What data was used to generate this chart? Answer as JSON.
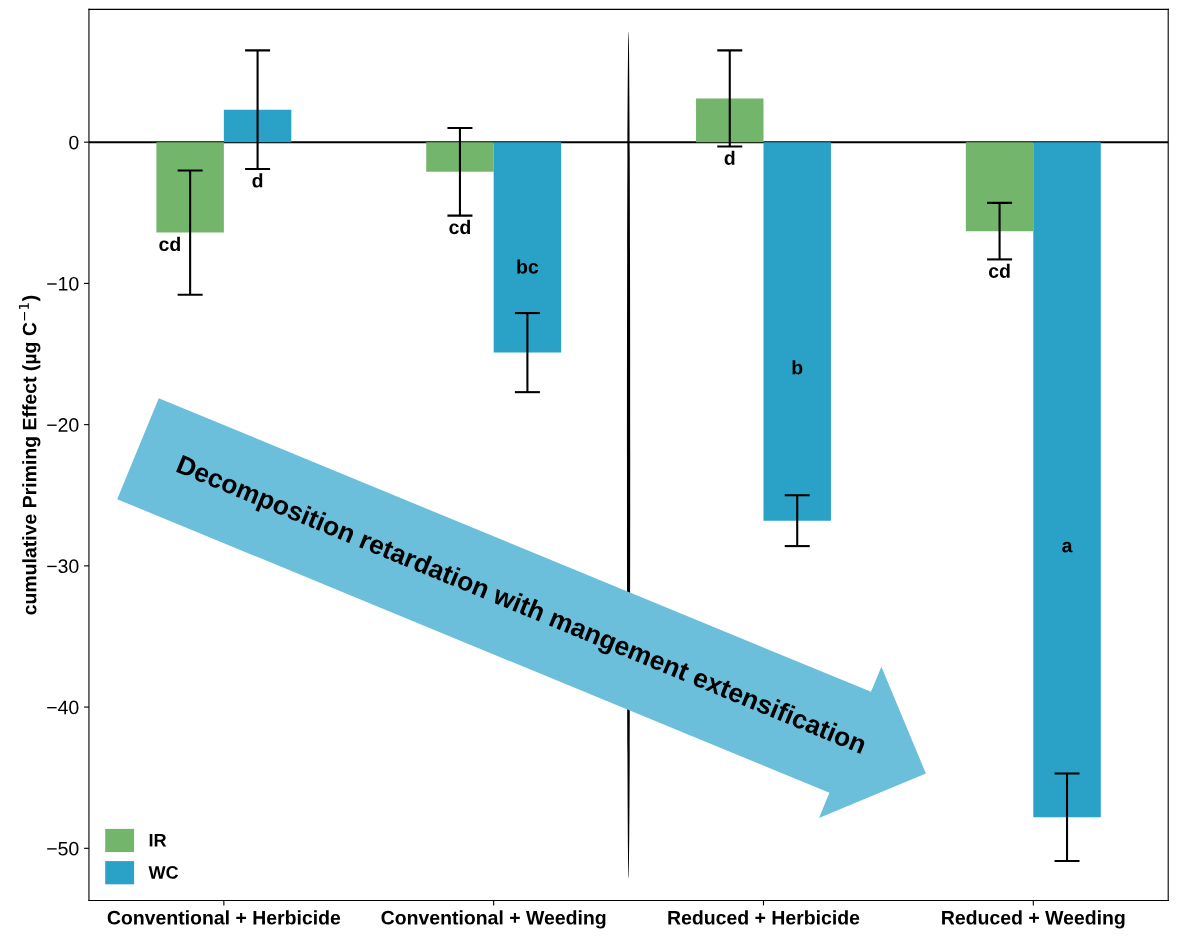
{
  "chart_data": {
    "type": "bar",
    "ylabel": "cumulative Priming Effect (µg C$^{−1}$)",
    "categories": [
      "Conventional + Herbicide",
      "Conventional + Weeding",
      "Reduced + Herbicide",
      "Reduced + Weeding"
    ],
    "series": [
      {
        "name": "IR",
        "color": "#73b66b",
        "values": [
          -6.4,
          -2.1,
          3.1,
          -6.3
        ],
        "errors": [
          4.4,
          3.1,
          3.4,
          2.0
        ],
        "value_labels": [
          "cd",
          "cd",
          "d",
          "cd"
        ]
      },
      {
        "name": "WC",
        "color": "#2aa1c6",
        "values": [
          2.3,
          -14.9,
          -26.8,
          -47.8
        ],
        "errors": [
          4.2,
          2.8,
          1.8,
          3.1
        ],
        "value_labels": [
          "d",
          "bc",
          "b",
          "a"
        ]
      }
    ],
    "ylim": [
      -53.7,
      9.4
    ],
    "yticks": [
      0,
      -10,
      -20,
      -30,
      -40,
      -50
    ],
    "ref_lines": [
      {
        "axis": "y",
        "value": 0,
        "color": "#000000"
      }
    ],
    "annotations": [
      "Decomposition retardation with mangement extensification"
    ],
    "legend": "bottom left",
    "grid": false
  }
}
